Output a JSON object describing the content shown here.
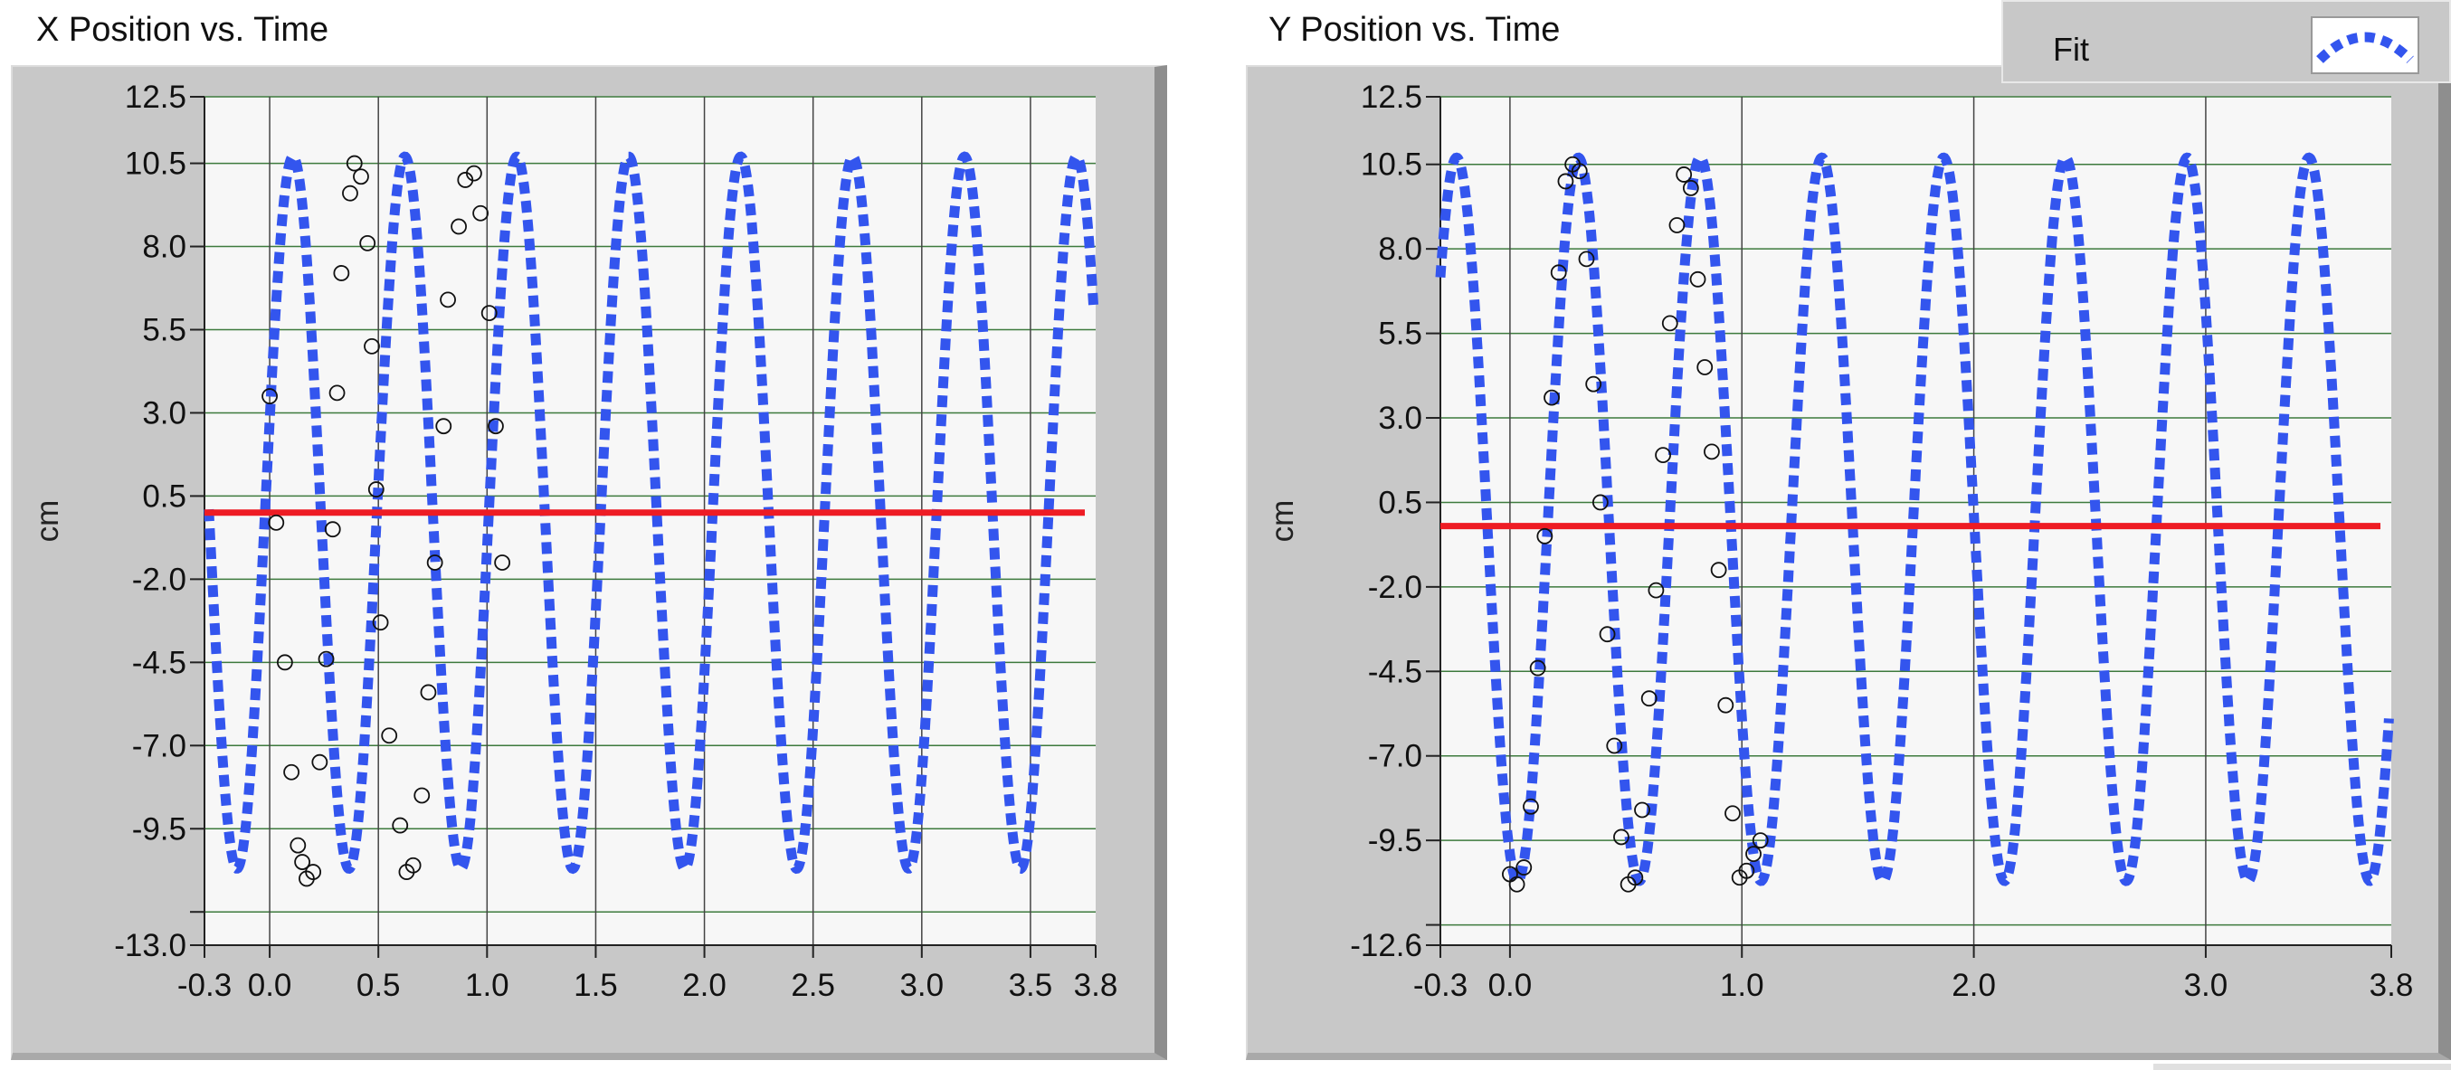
{
  "left_panel": {
    "title": "X Position vs. Time"
  },
  "right_panel": {
    "title": "Y Position vs. Time"
  },
  "legend": {
    "label": "Fit",
    "line_color": "#3355ee"
  },
  "colors": {
    "fit": "#3355ee",
    "mean": "#ee1c24",
    "plot_bg": "#f7f7f7",
    "grid": "#3d7a3d",
    "frame": "#c8c8c8"
  },
  "chart_data": [
    {
      "type": "scatter",
      "title": "X Position vs. Time",
      "ylabel": "cm",
      "xlabel": "",
      "xlim": [
        -0.3,
        3.8
      ],
      "ylim": [
        -13.0,
        12.5
      ],
      "x_ticks": [
        "-0.3",
        "0.0",
        "0.5",
        "1.0",
        "1.5",
        "2.0",
        "2.5",
        "3.0",
        "3.5",
        "3.8"
      ],
      "y_ticks": [
        "12.5",
        "10.5",
        "8.0",
        "5.5",
        "3.0",
        "0.5",
        "-2.0",
        "-4.5",
        "-7.0",
        "-9.5",
        "-13.0"
      ],
      "x_tick_values": [
        -0.3,
        0.0,
        0.5,
        1.0,
        1.5,
        2.0,
        2.5,
        3.0,
        3.5,
        3.8
      ],
      "y_tick_values": [
        12.5,
        10.5,
        8.0,
        5.5,
        3.0,
        0.5,
        -2.0,
        -4.5,
        -7.0,
        -9.5,
        -13.0
      ],
      "y_grid_values": [
        12.5,
        10.5,
        8.0,
        5.5,
        3.0,
        0.5,
        -2.0,
        -4.5,
        -7.0,
        -9.5,
        -12.0
      ],
      "extra_y_ticks": [
        -12.0
      ],
      "grid": true,
      "fit": {
        "amplitude": 10.7,
        "period": 0.515,
        "phase": 0.107,
        "offset": 0.0,
        "x_range": [
          -0.28,
          3.79
        ]
      },
      "mean_line": 0.0,
      "series": [
        {
          "name": "",
          "x": [
            0.0,
            0.03,
            0.07,
            0.1,
            0.13,
            0.15,
            0.17,
            0.2,
            0.23,
            0.26,
            0.29,
            0.31,
            0.33,
            0.37,
            0.39,
            0.42,
            0.45,
            0.47,
            0.49,
            0.51,
            0.55,
            0.6,
            0.63,
            0.66,
            0.7,
            0.73,
            0.76,
            0.8,
            0.82,
            0.87,
            0.9,
            0.94,
            0.97,
            1.01,
            1.04,
            1.07
          ],
          "y": [
            3.5,
            -0.3,
            -4.5,
            -7.8,
            -10.0,
            -10.5,
            -11.0,
            -10.8,
            -7.5,
            -4.4,
            -0.5,
            3.6,
            7.2,
            9.6,
            10.5,
            10.1,
            8.1,
            5.0,
            0.7,
            -3.3,
            -6.7,
            -9.4,
            -10.8,
            -10.6,
            -8.5,
            -5.4,
            -1.5,
            2.6,
            6.4,
            8.6,
            10.0,
            10.2,
            9.0,
            6.0,
            2.6,
            -1.5
          ]
        }
      ]
    },
    {
      "type": "scatter",
      "title": "Y Position vs. Time",
      "ylabel": "cm",
      "xlabel": "",
      "xlim": [
        -0.3,
        3.8
      ],
      "ylim": [
        -12.6,
        12.5
      ],
      "x_ticks": [
        "-0.3",
        "0.0",
        "1.0",
        "2.0",
        "3.0",
        "3.8"
      ],
      "y_ticks": [
        "12.5",
        "10.5",
        "8.0",
        "5.5",
        "3.0",
        "0.5",
        "-2.0",
        "-4.5",
        "-7.0",
        "-9.5",
        "-12.6"
      ],
      "x_tick_values": [
        -0.3,
        0.0,
        1.0,
        2.0,
        3.0,
        3.8
      ],
      "y_tick_values": [
        12.5,
        10.5,
        8.0,
        5.5,
        3.0,
        0.5,
        -2.0,
        -4.5,
        -7.0,
        -9.5,
        -12.6
      ],
      "y_grid_values": [
        12.5,
        10.5,
        8.0,
        5.5,
        3.0,
        0.5,
        -2.0,
        -4.5,
        -7.0,
        -9.5,
        -12.0
      ],
      "extra_y_ticks": [
        -12.0
      ],
      "grid": true,
      "fit": {
        "amplitude": 10.7,
        "period": 0.525,
        "phase": -0.23,
        "offset": 0.0,
        "x_range": [
          -0.3,
          3.79
        ]
      },
      "mean_line": -0.2,
      "series": [
        {
          "name": "",
          "x": [
            0.0,
            0.03,
            0.06,
            0.09,
            0.12,
            0.15,
            0.18,
            0.21,
            0.24,
            0.27,
            0.3,
            0.33,
            0.36,
            0.39,
            0.42,
            0.45,
            0.48,
            0.51,
            0.54,
            0.57,
            0.6,
            0.63,
            0.66,
            0.69,
            0.72,
            0.75,
            0.78,
            0.81,
            0.84,
            0.87,
            0.9,
            0.93,
            0.96,
            0.99,
            1.02,
            1.05,
            1.08
          ],
          "y": [
            -10.5,
            -10.8,
            -10.3,
            -8.5,
            -4.4,
            -0.5,
            3.6,
            7.3,
            10.0,
            10.5,
            10.3,
            7.7,
            4.0,
            0.5,
            -3.4,
            -6.7,
            -9.4,
            -10.8,
            -10.6,
            -8.6,
            -5.3,
            -2.1,
            1.9,
            5.8,
            8.7,
            10.2,
            9.8,
            7.1,
            4.5,
            2.0,
            -1.5,
            -5.5,
            -8.7,
            -10.6,
            -10.4,
            -9.9,
            -9.5
          ]
        }
      ]
    }
  ]
}
